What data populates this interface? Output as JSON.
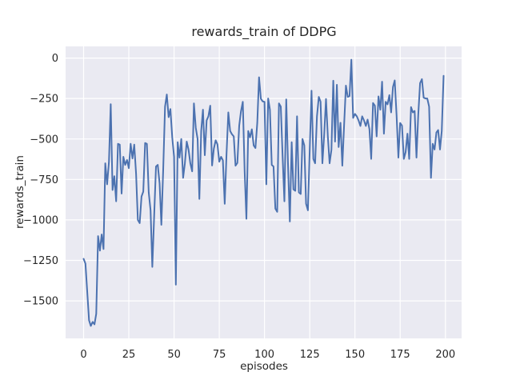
{
  "chart_data": {
    "type": "line",
    "title": "rewards_train of DDPG",
    "xlabel": "episodes",
    "ylabel": "rewards_train",
    "x_start": 0,
    "x_step": 1,
    "values": [
      -1240,
      -1270,
      -1440,
      -1620,
      -1655,
      -1630,
      -1645,
      -1580,
      -1100,
      -1190,
      -1090,
      -1180,
      -650,
      -780,
      -640,
      -285,
      -815,
      -730,
      -885,
      -530,
      -535,
      -837,
      -610,
      -660,
      -630,
      -680,
      -530,
      -620,
      -535,
      -715,
      -1000,
      -1020,
      -855,
      -825,
      -525,
      -530,
      -830,
      -940,
      -1290,
      -975,
      -670,
      -660,
      -775,
      -1030,
      -690,
      -300,
      -225,
      -365,
      -315,
      -490,
      -610,
      -1400,
      -520,
      -615,
      -500,
      -740,
      -650,
      -516,
      -566,
      -650,
      -700,
      -280,
      -430,
      -500,
      -870,
      -450,
      -319,
      -600,
      -385,
      -360,
      -294,
      -664,
      -560,
      -508,
      -533,
      -640,
      -610,
      -632,
      -900,
      -600,
      -336,
      -451,
      -470,
      -484,
      -665,
      -648,
      -418,
      -330,
      -270,
      -698,
      -993,
      -451,
      -490,
      -440,
      -540,
      -556,
      -400,
      -119,
      -251,
      -268,
      -270,
      -780,
      -250,
      -319,
      -660,
      -670,
      -930,
      -950,
      -280,
      -300,
      -600,
      -885,
      -255,
      -655,
      -1010,
      -520,
      -811,
      -820,
      -360,
      -830,
      -840,
      -500,
      -540,
      -900,
      -940,
      -560,
      -202,
      -623,
      -650,
      -360,
      -240,
      -270,
      -650,
      -467,
      -253,
      -484,
      -650,
      -566,
      -140,
      -516,
      -165,
      -550,
      -400,
      -665,
      -418,
      -170,
      -240,
      -235,
      -10,
      -370,
      -345,
      -360,
      -385,
      -420,
      -360,
      -385,
      -420,
      -380,
      -440,
      -623,
      -278,
      -294,
      -484,
      -237,
      -319,
      -146,
      -467,
      -270,
      -286,
      -229,
      -336,
      -179,
      -138,
      -352,
      -615,
      -401,
      -418,
      -623,
      -582,
      -467,
      -623,
      -303,
      -336,
      -327,
      -615,
      -352,
      -155,
      -130,
      -245,
      -250,
      -250,
      -300,
      -740,
      -530,
      -565,
      -460,
      -445,
      -565,
      -450,
      -110
    ],
    "xtick_values": [
      0,
      25,
      50,
      75,
      100,
      125,
      150,
      175,
      200
    ],
    "xtick_labels": [
      "0",
      "25",
      "50",
      "75",
      "100",
      "125",
      "150",
      "175",
      "200"
    ],
    "ytick_values": [
      0,
      -250,
      -500,
      -750,
      -1000,
      -1250,
      -1500
    ],
    "ytick_labels": [
      "0",
      "−250",
      "−500",
      "−750",
      "−1000",
      "−1250",
      "−1500"
    ],
    "xlim": [
      -9.95,
      208.95
    ],
    "ylim": [
      -1732,
      72
    ],
    "grid": true,
    "legend_position": "none",
    "colors": {
      "line": "#4c72b0",
      "plot_background": "#eaeaf2",
      "grid": "#ffffff",
      "text": "#262626",
      "figure_background": "#ffffff"
    }
  }
}
